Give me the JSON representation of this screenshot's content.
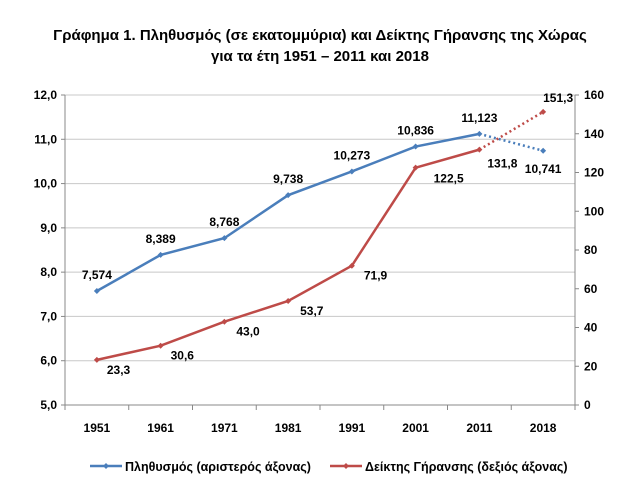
{
  "chart_data": {
    "type": "line",
    "title": "Γράφημα 1. Πληθυσμός (σε εκατομμύρια) και Δείκτης Γήρανσης της Χώρας",
    "subtitle": "για τα έτη 1951 – 2011 και 2018",
    "categories": [
      "1951",
      "1961",
      "1971",
      "1981",
      "1991",
      "2001",
      "2011",
      "2018"
    ],
    "y_left": {
      "range": [
        5.0,
        12.0
      ],
      "ticks": [
        "5,0",
        "6,0",
        "7,0",
        "8,0",
        "9,0",
        "10,0",
        "11,0",
        "12,0"
      ]
    },
    "y_right": {
      "range": [
        0,
        160
      ],
      "ticks": [
        "0",
        "20",
        "40",
        "60",
        "80",
        "100",
        "120",
        "140",
        "160"
      ]
    },
    "grid": true,
    "legend_position": "bottom",
    "series": [
      {
        "name": "Πληθυσμός (αριστερός άξονας)",
        "axis": "left",
        "color": "#4a7ebb",
        "values": [
          7.574,
          8.389,
          8.768,
          9.738,
          10.273,
          10.836,
          11.123,
          10.741
        ],
        "labels": [
          "7,574",
          "8,389",
          "8,768",
          "9,738",
          "10,273",
          "10,836",
          "11,123",
          "10,741"
        ],
        "dotted_last_segment": true
      },
      {
        "name": "Δείκτης Γήρανσης (δεξιός άξονας)",
        "axis": "right",
        "color": "#be4b48",
        "values": [
          23.3,
          30.6,
          43.0,
          53.7,
          71.9,
          122.5,
          131.8,
          151.3
        ],
        "labels": [
          "23,3",
          "30,6",
          "43,0",
          "53,7",
          "71,9",
          "122,5",
          "131,8",
          "151,3"
        ],
        "dotted_last_segment": true
      }
    ]
  }
}
